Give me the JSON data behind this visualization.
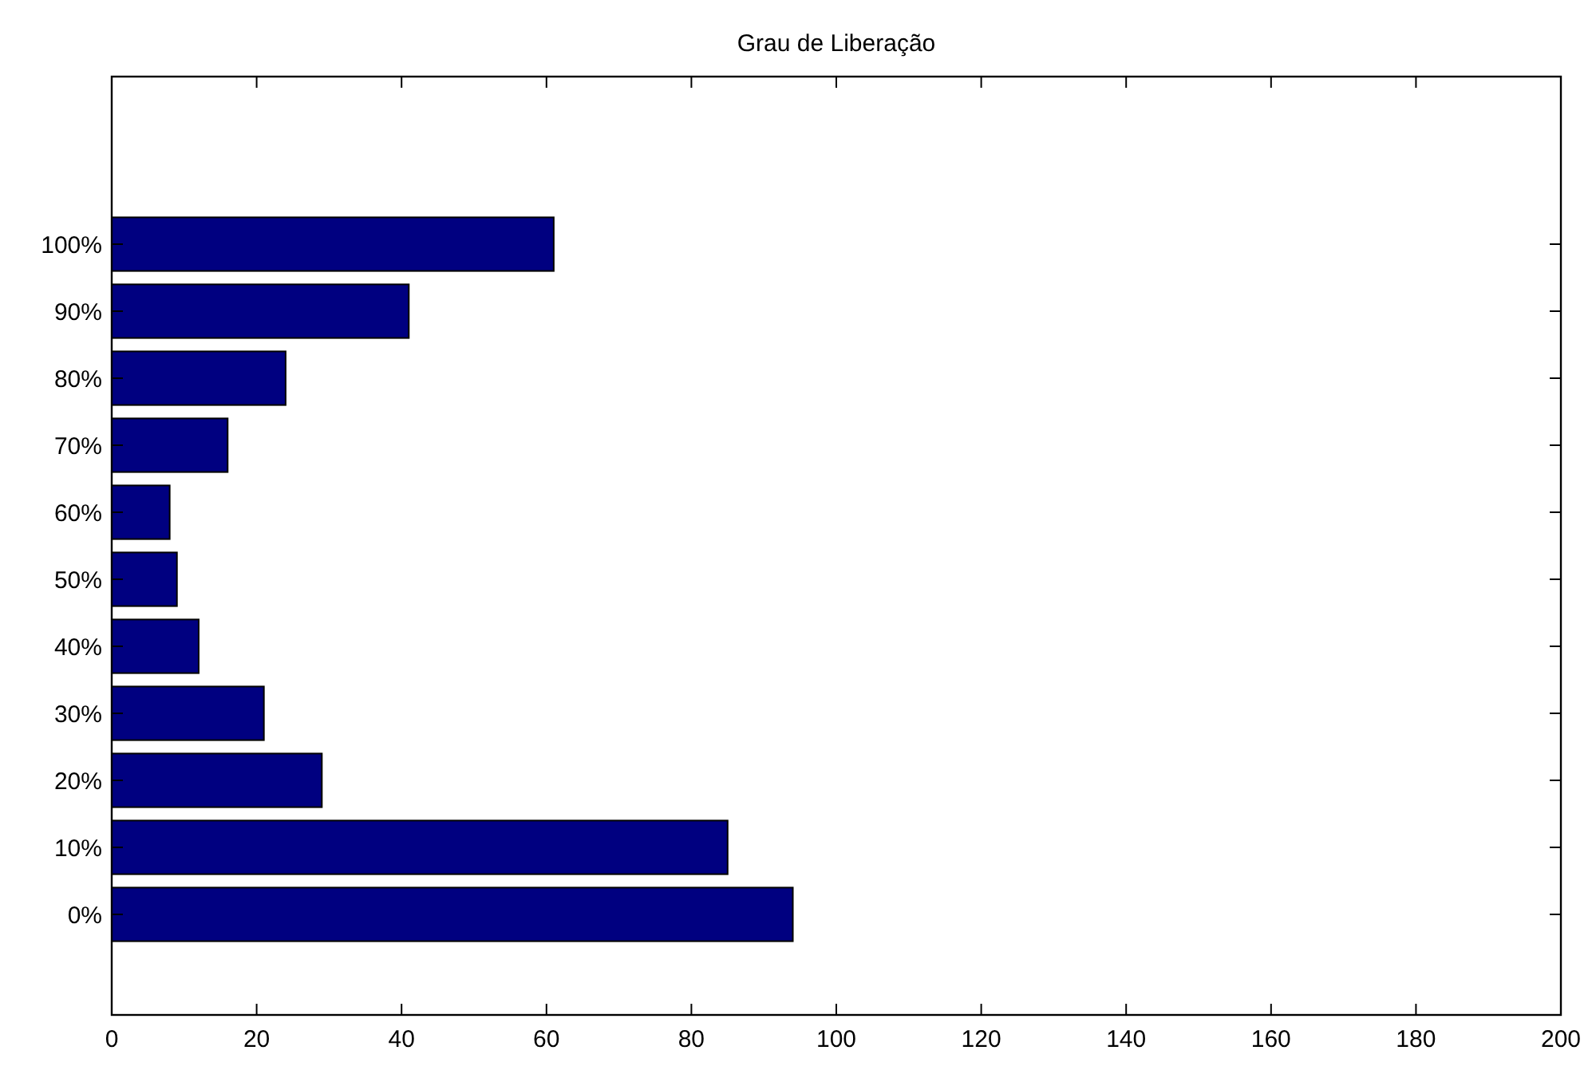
{
  "chart_data": {
    "type": "bar",
    "orientation": "horizontal",
    "title": "Grau de Liberação",
    "categories": [
      "100%",
      "90%",
      "80%",
      "70%",
      "60%",
      "50%",
      "40%",
      "30%",
      "20%",
      "10%",
      "0%"
    ],
    "values": [
      61,
      41,
      24,
      16,
      8,
      9,
      12,
      21,
      29,
      85,
      94
    ],
    "color": "#000080",
    "xlim": [
      0,
      200
    ],
    "xticks": [
      0,
      20,
      40,
      60,
      80,
      100,
      120,
      140,
      160,
      180,
      200
    ],
    "grid": false
  }
}
